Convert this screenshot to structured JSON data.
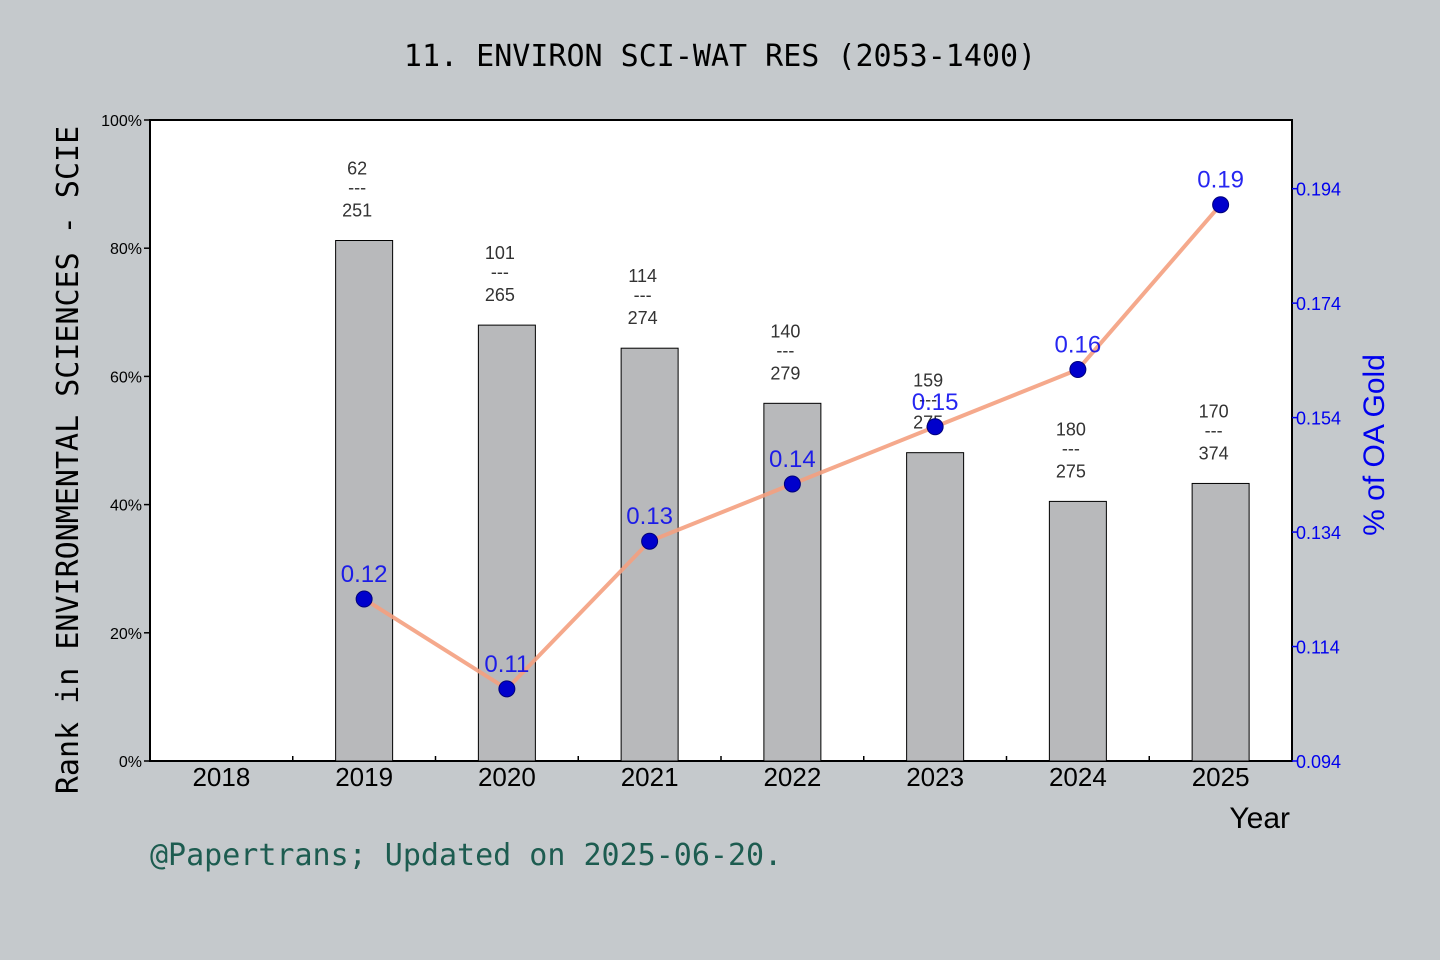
{
  "title": "11. ENVIRON SCI-WAT RES (2053-1400)",
  "footer": "@Papertrans; Updated on 2025-06-20.",
  "chart_data": {
    "type": "bar",
    "title": "11. ENVIRON SCI-WAT RES (2053-1400)",
    "xlabel": "Year",
    "ylabel": "Rank in ENVIRONMENTAL SCIENCES - SCIE",
    "y2label": "% of OA Gold",
    "categories": [
      "2018",
      "2019",
      "2020",
      "2021",
      "2022",
      "2023",
      "2024",
      "2025"
    ],
    "ylim": [
      0,
      100
    ],
    "yticks": [
      "0%",
      "20%",
      "40%",
      "60%",
      "80%",
      "100%"
    ],
    "y2lim": [
      0.094,
      0.206
    ],
    "y2ticks": [
      "0.094",
      "0.114",
      "0.134",
      "0.154",
      "0.174",
      "0.194"
    ],
    "bars": [
      {
        "year": "2019",
        "percent": 81.2,
        "rank": "62",
        "total": "251"
      },
      {
        "year": "2020",
        "percent": 68.0,
        "rank": "101",
        "total": "265"
      },
      {
        "year": "2021",
        "percent": 64.4,
        "rank": "114",
        "total": "274"
      },
      {
        "year": "2022",
        "percent": 55.8,
        "rank": "140",
        "total": "279"
      },
      {
        "year": "2023",
        "percent": 48.1,
        "rank": "159",
        "total": "275"
      },
      {
        "year": "2024",
        "percent": 40.5,
        "rank": "180",
        "total": "275"
      },
      {
        "year": "2025",
        "percent": 43.3,
        "rank": "170",
        "total": "374"
      }
    ],
    "separator": "---",
    "line": [
      {
        "year": "2019",
        "value": 0.1223,
        "label": "0.12"
      },
      {
        "year": "2020",
        "value": 0.1066,
        "label": "0.11"
      },
      {
        "year": "2021",
        "value": 0.1324,
        "label": "0.13"
      },
      {
        "year": "2022",
        "value": 0.1424,
        "label": "0.14"
      },
      {
        "year": "2023",
        "value": 0.1524,
        "label": "0.15"
      },
      {
        "year": "2024",
        "value": 0.1624,
        "label": "0.16"
      },
      {
        "year": "2025",
        "value": 0.1912,
        "label": "0.19"
      }
    ],
    "colors": {
      "bar": "#b8b9bb",
      "line": "#f4a080",
      "marker": "#0000cc",
      "oa_text": "#0000ee",
      "background": "#c5c9cc",
      "plot": "#ffffff"
    }
  }
}
